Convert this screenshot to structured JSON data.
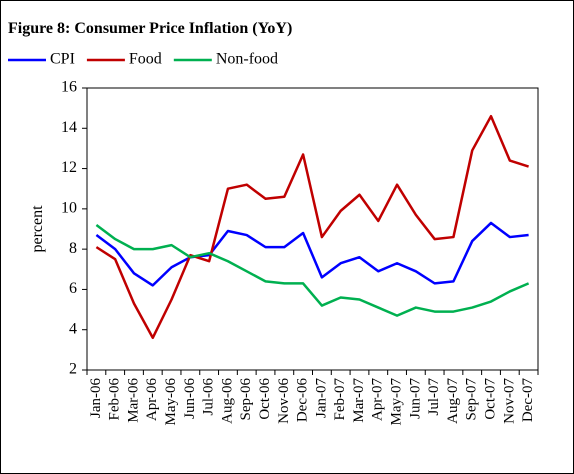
{
  "chart_data": {
    "type": "line",
    "title": "Figure 8: Consumer Price Inflation (YoY)",
    "y_label": "percent",
    "categories": [
      "Jan-06",
      "Feb-06",
      "Mar-06",
      "Apr-06",
      "May-06",
      "Jun-06",
      "Jul-06",
      "Aug-06",
      "Sep-06",
      "Oct-06",
      "Nov-06",
      "Dec-06",
      "Jan-07",
      "Feb-07",
      "Mar-07",
      "Apr-07",
      "May-07",
      "Jun-07",
      "Jul-07",
      "Aug-07",
      "Sep-07",
      "Oct-07",
      "Nov-07",
      "Dec-07"
    ],
    "series": [
      {
        "name": "CPI",
        "color": "#0000ff",
        "values": [
          8.7,
          8.0,
          6.8,
          6.2,
          7.1,
          7.6,
          7.7,
          8.9,
          8.7,
          8.1,
          8.1,
          8.8,
          6.6,
          7.3,
          7.6,
          6.9,
          7.3,
          6.9,
          6.3,
          6.4,
          8.4,
          9.3,
          8.6,
          8.7
        ]
      },
      {
        "name": "Food",
        "color": "#c00000",
        "values": [
          8.1,
          7.5,
          5.3,
          3.6,
          5.5,
          7.7,
          7.4,
          11.0,
          11.2,
          10.5,
          10.6,
          12.7,
          8.6,
          9.9,
          10.7,
          9.4,
          11.2,
          9.7,
          8.5,
          8.6,
          12.9,
          14.6,
          12.4,
          12.1
        ]
      },
      {
        "name": "Non-food",
        "color": "#00b050",
        "values": [
          9.2,
          8.5,
          8.0,
          8.0,
          8.2,
          7.6,
          7.8,
          7.4,
          6.9,
          6.4,
          6.3,
          6.3,
          5.2,
          5.6,
          5.5,
          5.1,
          4.7,
          5.1,
          4.9,
          4.9,
          5.1,
          5.4,
          5.9,
          6.3
        ]
      }
    ],
    "ylim": [
      2,
      16
    ],
    "yticks": [
      2,
      4,
      6,
      8,
      10,
      12,
      14,
      16
    ],
    "legend": "top"
  }
}
